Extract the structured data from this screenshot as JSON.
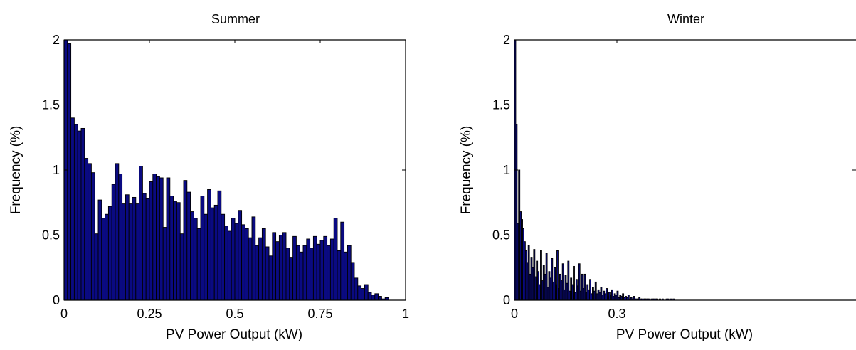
{
  "colors": {
    "bar_fill": "#0a0a82",
    "bar_edge": "#000000",
    "axes": "#000000",
    "background": "#ffffff"
  },
  "chart_data": [
    {
      "type": "bar",
      "title": "Summer",
      "xlabel": "PV Power Output (kW)",
      "ylabel": "Frequency (%)",
      "xlim": [
        0,
        1
      ],
      "ylim": [
        0,
        2
      ],
      "xticks": [
        0,
        0.25,
        0.5,
        0.75,
        1
      ],
      "xtick_labels": [
        "0",
        "0.25",
        "0.5",
        "0.75",
        "1"
      ],
      "yticks": [
        0,
        0.5,
        1,
        1.5,
        2
      ],
      "ytick_labels": [
        "0",
        "0.5",
        "1",
        "1.5",
        "2"
      ],
      "grid": false,
      "bin_width": 0.01,
      "bin_start": 0,
      "values": [
        2.0,
        1.97,
        1.4,
        1.35,
        1.3,
        1.32,
        1.09,
        1.05,
        0.98,
        0.51,
        0.77,
        0.63,
        0.66,
        0.72,
        0.89,
        1.05,
        0.97,
        0.74,
        0.81,
        0.74,
        0.79,
        0.74,
        1.03,
        0.82,
        0.78,
        0.91,
        0.97,
        0.95,
        0.94,
        0.56,
        0.94,
        0.8,
        0.76,
        0.75,
        0.51,
        0.92,
        0.83,
        0.68,
        0.63,
        0.55,
        0.8,
        0.66,
        0.85,
        0.71,
        0.73,
        0.84,
        0.66,
        0.57,
        0.53,
        0.63,
        0.59,
        0.69,
        0.58,
        0.55,
        0.48,
        0.64,
        0.42,
        0.48,
        0.55,
        0.41,
        0.34,
        0.52,
        0.45,
        0.5,
        0.52,
        0.4,
        0.33,
        0.49,
        0.42,
        0.37,
        0.42,
        0.47,
        0.4,
        0.49,
        0.43,
        0.46,
        0.49,
        0.42,
        0.47,
        0.63,
        0.38,
        0.6,
        0.37,
        0.42,
        0.29,
        0.17,
        0.11,
        0.09,
        0.12,
        0.06,
        0.04,
        0.05,
        0.03,
        0.01,
        0.02,
        0,
        0,
        0,
        0,
        0
      ]
    },
    {
      "type": "bar",
      "title": "Winter",
      "xlabel": "PV Power Output (kW)",
      "ylabel": "Frequency (%)",
      "xlim": [
        0,
        1
      ],
      "ylim": [
        0,
        2
      ],
      "xticks": [
        0,
        0.3
      ],
      "xtick_labels": [
        "0",
        "0.3"
      ],
      "yticks": [
        0,
        0.5,
        1,
        1.5,
        2
      ],
      "ytick_labels": [
        "0",
        "0.5",
        "1",
        "1.5",
        "2"
      ],
      "grid": false,
      "bin_width": 0.004,
      "bin_start": 0,
      "values": [
        2.0,
        1.35,
        0.59,
        1.0,
        0.68,
        0.62,
        0.55,
        0.45,
        0.38,
        0.29,
        0.42,
        0.2,
        0.33,
        0.25,
        0.39,
        0.18,
        0.3,
        0.22,
        0.12,
        0.38,
        0.15,
        0.27,
        0.2,
        0.36,
        0.1,
        0.22,
        0.17,
        0.32,
        0.14,
        0.25,
        0.12,
        0.38,
        0.09,
        0.2,
        0.15,
        0.28,
        0.08,
        0.19,
        0.13,
        0.3,
        0.07,
        0.17,
        0.12,
        0.26,
        0.06,
        0.16,
        0.11,
        0.28,
        0.07,
        0.2,
        0.09,
        0.2,
        0.06,
        0.12,
        0.08,
        0.16,
        0.05,
        0.1,
        0.07,
        0.14,
        0.05,
        0.08,
        0.06,
        0.1,
        0.04,
        0.07,
        0.05,
        0.09,
        0.03,
        0.06,
        0.04,
        0.08,
        0.03,
        0.05,
        0.04,
        0.07,
        0.02,
        0.04,
        0.03,
        0.05,
        0.02,
        0.03,
        0.02,
        0.04,
        0.01,
        0.02,
        0.01,
        0.03,
        0.01,
        0.01,
        0.01,
        0.02,
        0.01,
        0.01,
        0.01,
        0.01,
        0.01,
        0.01,
        0.01,
        0,
        0.01,
        0.01,
        0.01,
        0.01,
        0.01,
        0,
        0.01,
        0,
        0.01,
        0,
        0,
        0.01,
        0.01,
        0,
        0.01,
        0,
        0.01
      ]
    }
  ]
}
